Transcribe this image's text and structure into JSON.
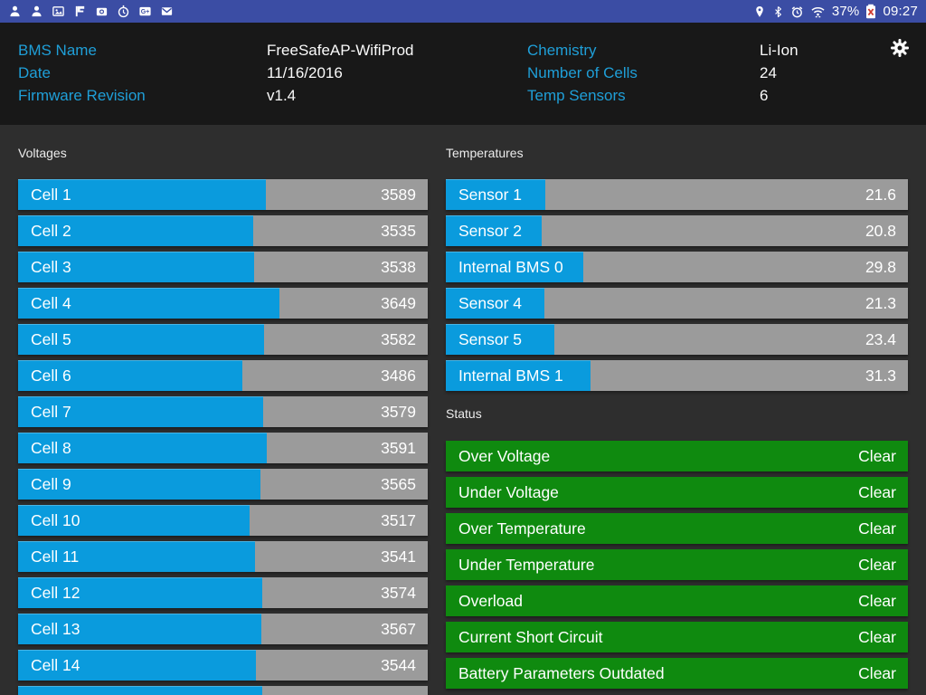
{
  "status_bar": {
    "time": "09:27",
    "battery_pct": "37%",
    "left_icons": [
      "person-icon",
      "person-icon",
      "gallery-icon",
      "flag-icon",
      "camera-icon",
      "timer-icon",
      "gplus-icon",
      "mail-icon"
    ],
    "right_icons": [
      "location-icon",
      "bluetooth-icon",
      "alarm-icon",
      "wifi-icon"
    ],
    "battery_icon": "battery-icon"
  },
  "header": {
    "left": [
      {
        "label": "BMS Name",
        "value": "FreeSafeAP-WifiProd"
      },
      {
        "label": "Date",
        "value": "11/16/2016"
      },
      {
        "label": "Firmware Revision",
        "value": "v1.4"
      }
    ],
    "right": [
      {
        "label": "Chemistry",
        "value": "Li-Ion"
      },
      {
        "label": "Number of Cells",
        "value": "24"
      },
      {
        "label": "Temp Sensors",
        "value": "6"
      }
    ],
    "settings_icon": "gear-icon"
  },
  "voltages": {
    "title": "Voltages",
    "rows": [
      {
        "label": "Cell 1",
        "value": "3589",
        "fill_pct": 60.5
      },
      {
        "label": "Cell 2",
        "value": "3535",
        "fill_pct": 57.5
      },
      {
        "label": "Cell 3",
        "value": "3538",
        "fill_pct": 57.7
      },
      {
        "label": "Cell 4",
        "value": "3649",
        "fill_pct": 63.8
      },
      {
        "label": "Cell 5",
        "value": "3582",
        "fill_pct": 60.1
      },
      {
        "label": "Cell 6",
        "value": "3486",
        "fill_pct": 54.8
      },
      {
        "label": "Cell 7",
        "value": "3579",
        "fill_pct": 59.9
      },
      {
        "label": "Cell 8",
        "value": "3591",
        "fill_pct": 60.6
      },
      {
        "label": "Cell 9",
        "value": "3565",
        "fill_pct": 59.2
      },
      {
        "label": "Cell 10",
        "value": "3517",
        "fill_pct": 56.5
      },
      {
        "label": "Cell 11",
        "value": "3541",
        "fill_pct": 57.8
      },
      {
        "label": "Cell 12",
        "value": "3574",
        "fill_pct": 59.7
      },
      {
        "label": "Cell 13",
        "value": "3567",
        "fill_pct": 59.3
      },
      {
        "label": "Cell 14",
        "value": "3544",
        "fill_pct": 58.0
      },
      {
        "label": "",
        "value": "",
        "fill_pct": 59.6
      }
    ]
  },
  "temperatures": {
    "title": "Temperatures",
    "rows": [
      {
        "label": "Sensor 1",
        "value": "21.6",
        "fill_pct": 21.6
      },
      {
        "label": "Sensor 2",
        "value": "20.8",
        "fill_pct": 20.8
      },
      {
        "label": "Internal BMS 0",
        "value": "29.8",
        "fill_pct": 29.8
      },
      {
        "label": "Sensor 4",
        "value": "21.3",
        "fill_pct": 21.3
      },
      {
        "label": "Sensor 5",
        "value": "23.4",
        "fill_pct": 23.4
      },
      {
        "label": "Internal BMS 1",
        "value": "31.3",
        "fill_pct": 31.3
      }
    ]
  },
  "status": {
    "title": "Status",
    "rows": [
      {
        "label": "Over Voltage",
        "state": "Clear"
      },
      {
        "label": "Under Voltage",
        "state": "Clear"
      },
      {
        "label": "Over Temperature",
        "state": "Clear"
      },
      {
        "label": "Under Temperature",
        "state": "Clear"
      },
      {
        "label": "Overload",
        "state": "Clear"
      },
      {
        "label": "Current Short Circuit",
        "state": "Clear"
      },
      {
        "label": "Battery Parameters Outdated",
        "state": "Clear"
      }
    ]
  },
  "colors": {
    "statusbar": "#3b4da4",
    "bg_header": "#181818",
    "bg_main": "#2e2e2e",
    "accent_cyan": "#1f9fd8",
    "bar_blue": "#0a9bdd",
    "bar_gray": "#9b9b9b",
    "status_green": "#0f8a0f",
    "battery_alert_red": "#cf3b30"
  }
}
